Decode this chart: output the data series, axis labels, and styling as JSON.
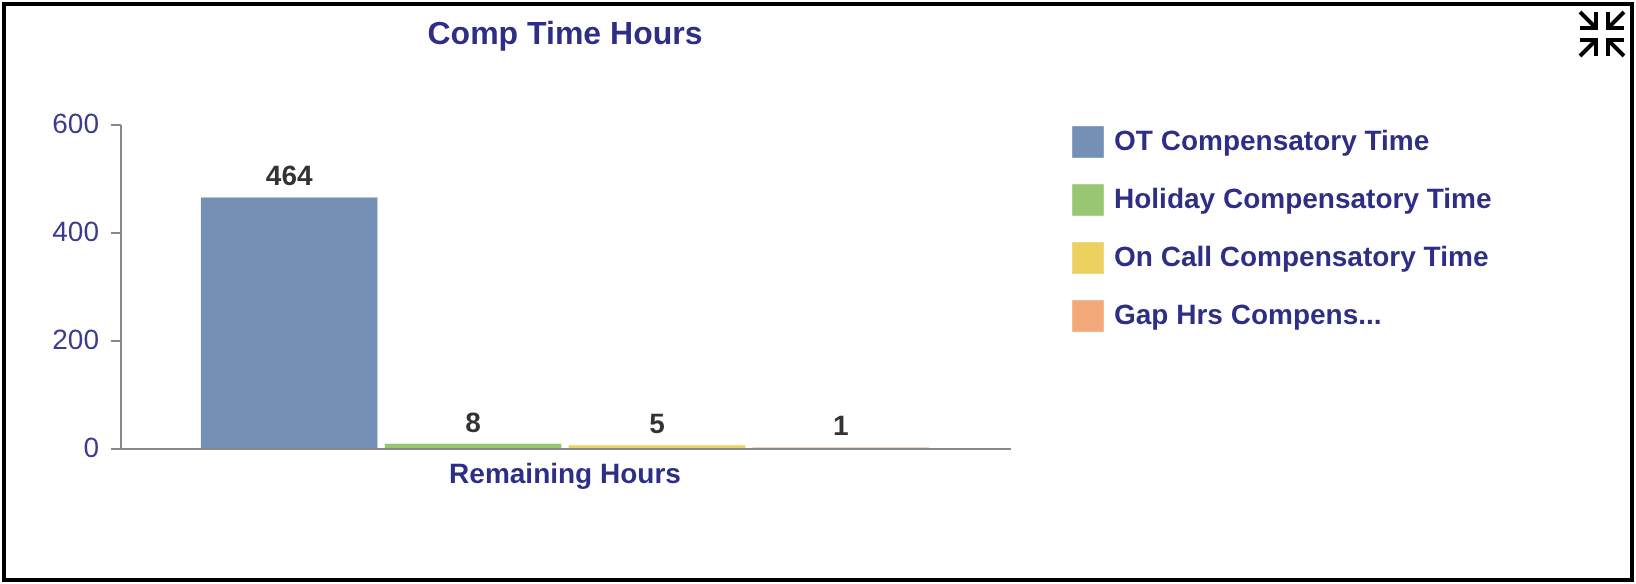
{
  "chart_data": {
    "type": "bar",
    "title": "Comp Time Hours",
    "categories": [
      "Remaining Hours"
    ],
    "series": [
      {
        "name": "OT Compensatory Time",
        "color": "#7490b5",
        "values": [
          464
        ]
      },
      {
        "name": "Holiday Compensatory Time",
        "color": "#98c772",
        "values": [
          8
        ]
      },
      {
        "name": "On Call Compensatory Time",
        "color": "#ecd060",
        "values": [
          5
        ]
      },
      {
        "name": "Gap Hrs Compens...",
        "color": "#f4a97a",
        "values": [
          1
        ]
      }
    ],
    "ylim": [
      0,
      600
    ],
    "yticks": [
      0,
      200,
      400,
      600
    ],
    "grid": false,
    "data_labels": true,
    "legend": "right"
  }
}
